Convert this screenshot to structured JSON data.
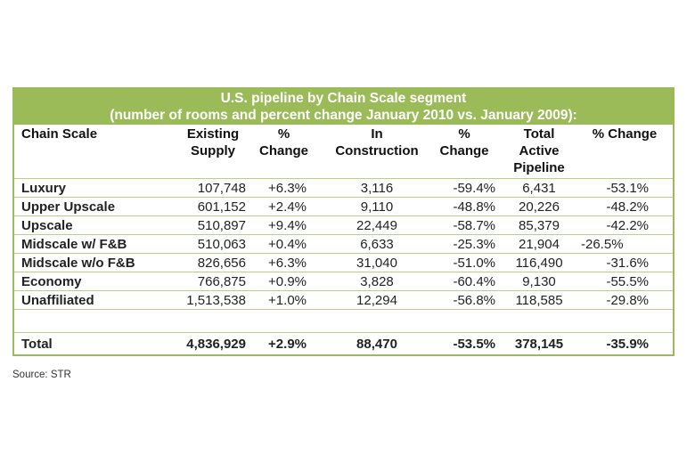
{
  "table": {
    "title_line1": "U.S. pipeline by Chain Scale segment",
    "title_line2": "(number of rooms and percent change January 2010 vs. January 2009):",
    "header_color": "#9bbb59",
    "columns": [
      "Chain Scale",
      "Existing Supply",
      "% Change",
      "In Construction",
      "% Change",
      "Total Active Pipeline",
      "% Change"
    ],
    "rows": [
      [
        "Luxury",
        "107,748",
        "+6.3%",
        "3,116",
        "-59.4%",
        "6,431",
        "-53.1%"
      ],
      [
        "Upper Upscale",
        "601,152",
        "+2.4%",
        "9,110",
        "-48.8%",
        "20,226",
        "-48.2%"
      ],
      [
        "Upscale",
        "510,897",
        "+9.4%",
        "22,449",
        "-58.7%",
        "85,379",
        "-42.2%"
      ],
      [
        "Midscale w/ F&B",
        "510,063",
        "+0.4%",
        "6,633",
        "-25.3%",
        "21,904",
        "-26.5%"
      ],
      [
        "Midscale w/o F&B",
        "826,656",
        "+6.3%",
        "31,040",
        "-51.0%",
        "116,490",
        "-31.6%"
      ],
      [
        "Economy",
        "766,875",
        "+0.9%",
        "3,828",
        "-60.4%",
        "9,130",
        "-55.5%"
      ],
      [
        "Unaffiliated",
        "1,513,538",
        "+1.0%",
        "12,294",
        "-56.8%",
        "118,585",
        "-29.8%"
      ]
    ],
    "total": [
      "Total",
      "4,836,929",
      "+2.9%",
      "88,470",
      "-53.5%",
      "378,145",
      "-35.9%"
    ]
  },
  "source": "Source: STR"
}
